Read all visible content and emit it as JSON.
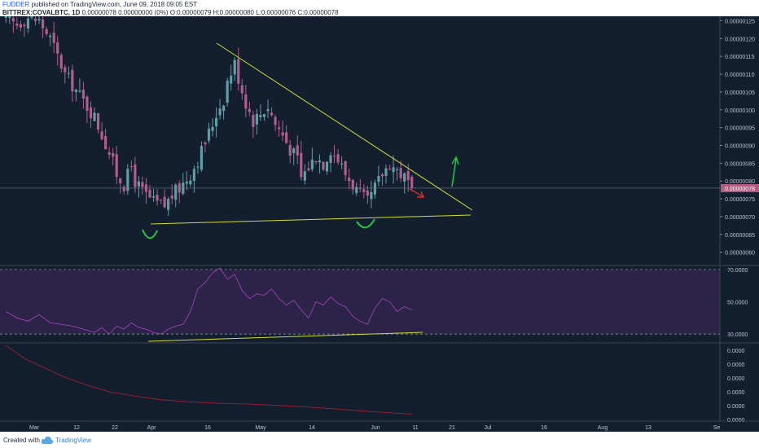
{
  "header": {
    "author": "FUDDER",
    "published_text": "published on TradingView.com, June 09, 2018 09:05 EST",
    "symbol": "BITTREX:COVALBTC, 1D",
    "quote": "0.00000078 0.00000000 (0%) O:0.00000079 H:0.00000080 L:0.00000076 C:0.00000078"
  },
  "footer": {
    "created_with": "Created with",
    "brand": "TradingView"
  },
  "colors": {
    "background": "#131f2e",
    "candle_up": "#5f9ea8",
    "candle_down": "#b15d90",
    "rsi_line": "#b040c8",
    "rsi_band": "#2b2348",
    "trendline": "#d4dd30",
    "ma_line": "#9b1e2e",
    "price_badge": "#b35a80",
    "annotation_green": "#1ecb3c",
    "annotation_red": "#e02a2a"
  },
  "chart_data": [
    {
      "type": "candlestick",
      "title": "",
      "x_tick_labels": [
        "Mar",
        "12",
        "22",
        "Apr",
        "16",
        "May",
        "14",
        "Jun",
        "11",
        "21",
        "Jul",
        "16",
        "Aug",
        "13",
        "Se"
      ],
      "y_tick_labels": [
        "0.00000125",
        "0.00000120",
        "0.00000115",
        "0.00000110",
        "0.00000105",
        "0.00000100",
        "0.00000095",
        "0.00000090",
        "0.00000085",
        "0.00000080",
        "0.00000075",
        "0.00000070",
        "0.00000065",
        "0.00000060"
      ],
      "y_ticks": [
        1.25e-06,
        1.2e-06,
        1.15e-06,
        1.1e-06,
        1.05e-06,
        1e-06,
        9.5e-07,
        9e-07,
        8.5e-07,
        8e-07,
        7.5e-07,
        7e-07,
        6.5e-07,
        6e-07
      ],
      "ylim": [
        5.65e-07,
        1.2625e-06
      ],
      "last_price_label": "0.00000078",
      "last_price": 7.8e-07,
      "grid": false,
      "close_path": [
        [
          0,
          1.25e-06
        ],
        [
          3,
          1.24e-06
        ],
        [
          6,
          1.26e-06
        ],
        [
          9,
          1.25e-06
        ],
        [
          12,
          1.2e-06
        ],
        [
          14,
          1.15e-06
        ],
        [
          16,
          1.1e-06
        ],
        [
          18,
          1.07e-06
        ],
        [
          20,
          1.04e-06
        ],
        [
          22,
          1.01e-06
        ],
        [
          24,
          9.8e-07
        ],
        [
          26,
          9.3e-07
        ],
        [
          28,
          8.8e-07
        ],
        [
          30,
          8.2e-07
        ],
        [
          32,
          7.9e-07
        ],
        [
          34,
          8.4e-07
        ],
        [
          35,
          8e-07
        ],
        [
          37,
          7.7e-07
        ],
        [
          40,
          7.4e-07
        ],
        [
          43,
          7.3e-07
        ],
        [
          45,
          7.6e-07
        ],
        [
          47,
          7.8e-07
        ],
        [
          50,
          8.2e-07
        ],
        [
          52,
          8.6e-07
        ],
        [
          54,
          9.1e-07
        ],
        [
          56,
          9.6e-07
        ],
        [
          57,
          9.9e-07
        ],
        [
          59,
          1.03e-06
        ],
        [
          60,
          1.08e-06
        ],
        [
          62,
          1.13e-06
        ],
        [
          63,
          1.09e-06
        ],
        [
          65,
          1.02e-06
        ],
        [
          67,
          9.7e-07
        ],
        [
          69,
          9.9e-07
        ],
        [
          71,
          1.01e-06
        ],
        [
          73,
          9.6e-07
        ],
        [
          75,
          9.3e-07
        ],
        [
          77,
          8.9e-07
        ],
        [
          79,
          8.6e-07
        ],
        [
          80,
          8.1e-07
        ],
        [
          82,
          8.4e-07
        ],
        [
          84,
          8.7e-07
        ],
        [
          86,
          8.5e-07
        ],
        [
          88,
          8.9e-07
        ],
        [
          90,
          8.6e-07
        ],
        [
          92,
          8.2e-07
        ],
        [
          94,
          7.9e-07
        ],
        [
          96,
          7.6e-07
        ],
        [
          98,
          7.4e-07
        ],
        [
          100,
          7.8e-07
        ],
        [
          102,
          8.2e-07
        ],
        [
          104,
          8.5e-07
        ],
        [
          106,
          8.3e-07
        ],
        [
          108,
          8.1e-07
        ],
        [
          110,
          7.8e-07
        ]
      ],
      "x_axis_days": 204,
      "candle_count": 111
    },
    {
      "type": "line",
      "title": "",
      "y_tick_labels": [
        "70.0000",
        "50.0000",
        "30.0000"
      ],
      "y_ticks": [
        70,
        50,
        30
      ],
      "ylim": [
        25,
        72
      ],
      "band": [
        30,
        70
      ],
      "path": [
        [
          0,
          44
        ],
        [
          3,
          40
        ],
        [
          6,
          38
        ],
        [
          9,
          42
        ],
        [
          12,
          37
        ],
        [
          15,
          36
        ],
        [
          18,
          35
        ],
        [
          21,
          33
        ],
        [
          24,
          31
        ],
        [
          26,
          34
        ],
        [
          28,
          30
        ],
        [
          30,
          35
        ],
        [
          32,
          33
        ],
        [
          34,
          37
        ],
        [
          36,
          34
        ],
        [
          38,
          33
        ],
        [
          40,
          31
        ],
        [
          42,
          30
        ],
        [
          44,
          33
        ],
        [
          46,
          35
        ],
        [
          48,
          36
        ],
        [
          50,
          44
        ],
        [
          52,
          58
        ],
        [
          54,
          62
        ],
        [
          56,
          68
        ],
        [
          58,
          71
        ],
        [
          60,
          64
        ],
        [
          62,
          67
        ],
        [
          64,
          57
        ],
        [
          66,
          52
        ],
        [
          68,
          55
        ],
        [
          70,
          54
        ],
        [
          72,
          58
        ],
        [
          74,
          52
        ],
        [
          76,
          48
        ],
        [
          78,
          51
        ],
        [
          80,
          45
        ],
        [
          82,
          40
        ],
        [
          84,
          50
        ],
        [
          86,
          48
        ],
        [
          88,
          53
        ],
        [
          90,
          49
        ],
        [
          92,
          47
        ],
        [
          94,
          41
        ],
        [
          96,
          38
        ],
        [
          98,
          36
        ],
        [
          100,
          46
        ],
        [
          102,
          52
        ],
        [
          104,
          50
        ],
        [
          106,
          44
        ],
        [
          108,
          47
        ],
        [
          110,
          45
        ]
      ]
    },
    {
      "type": "line",
      "title": "",
      "y_tick_labels": [
        "0.0000",
        "0.0000",
        "0.0000",
        "0.0000",
        "0.0000",
        "0.0000"
      ],
      "path": [
        [
          0,
          1.0
        ],
        [
          5,
          0.82
        ],
        [
          10,
          0.7
        ],
        [
          16,
          0.56
        ],
        [
          22,
          0.45
        ],
        [
          28,
          0.36
        ],
        [
          35,
          0.3
        ],
        [
          42,
          0.25
        ],
        [
          50,
          0.22
        ],
        [
          58,
          0.2
        ],
        [
          66,
          0.19
        ],
        [
          74,
          0.17
        ],
        [
          82,
          0.15
        ],
        [
          90,
          0.12
        ],
        [
          98,
          0.09
        ],
        [
          104,
          0.07
        ],
        [
          110,
          0.05
        ]
      ]
    }
  ]
}
